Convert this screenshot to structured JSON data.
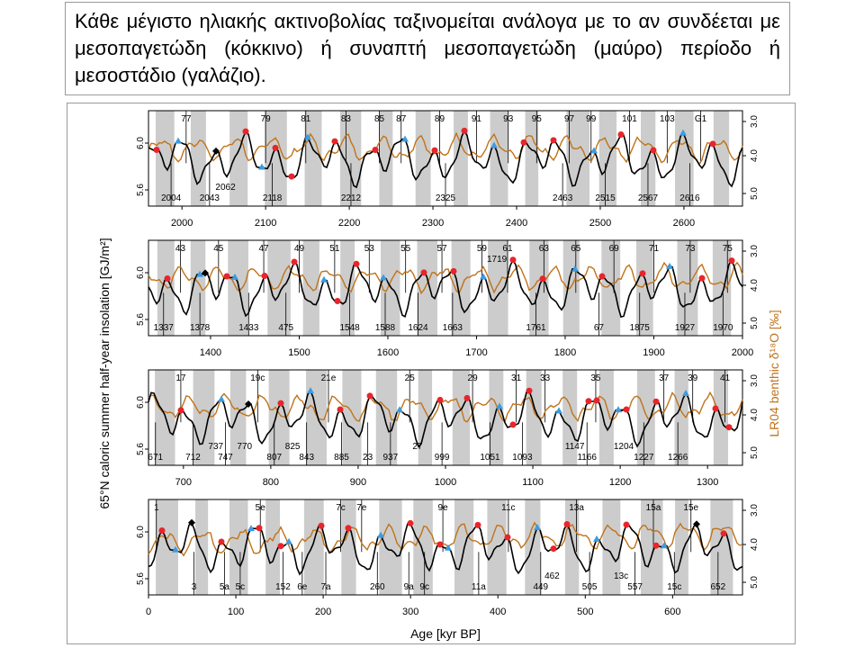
{
  "caption": "Κάθε μέγιστο ηλιακής ακτινοβολίας ταξινομείται ανάλογα με το αν συνδέεται με μεσοπαγετώδη (κόκκινο) ή συναπτή μεσοπαγετώδη (μαύρο) περίοδο ή μεσοστάδιο (γαλάζιο).",
  "colors": {
    "insolation": "#000000",
    "benthic": "#c0731a",
    "interglacial": "#e8252b",
    "interstadial": "#3d9be0",
    "glacial_band": "#cccccc"
  },
  "chart_data": {
    "type": "line",
    "xlabel": "Age [kyr BP]",
    "ylabel_left": "65°N caloric summer half-year insolation [GJ/m²]",
    "ylabel_right": "LR04 benthic δ¹⁸O  [‰]",
    "left_ticks": [
      "5.6",
      "6.0"
    ],
    "right_ticks": [
      "3.0",
      "4.0",
      "5.0"
    ],
    "panels": [
      {
        "xlim": [
          1960,
          2670
        ],
        "xticks": [
          "2000",
          "2100",
          "2200",
          "2300",
          "2400",
          "2500",
          "2600"
        ],
        "xtick_values": [
          2000,
          2100,
          2200,
          2300,
          2400,
          2500,
          2600
        ],
        "top_labels": [
          {
            "text": "77",
            "x": 2005
          },
          {
            "text": "79",
            "x": 2100
          },
          {
            "text": "81",
            "x": 2148
          },
          {
            "text": "83",
            "x": 2196
          },
          {
            "text": "85",
            "x": 2236
          },
          {
            "text": "87",
            "x": 2262
          },
          {
            "text": "89",
            "x": 2308
          },
          {
            "text": "91",
            "x": 2352
          },
          {
            "text": "93",
            "x": 2390
          },
          {
            "text": "95",
            "x": 2424
          },
          {
            "text": "97",
            "x": 2463
          },
          {
            "text": "99",
            "x": 2489
          },
          {
            "text": "101",
            "x": 2535
          },
          {
            "text": "103",
            "x": 2580
          },
          {
            "text": "G1",
            "x": 2620
          }
        ],
        "bottom_labels": [
          {
            "text": "2004",
            "x": 1987,
            "row": 0
          },
          {
            "text": "2043",
            "x": 2033,
            "row": 0
          },
          {
            "text": "2062",
            "x": 2052,
            "row": 1
          },
          {
            "text": "2118",
            "x": 2108,
            "row": 0
          },
          {
            "text": "2212",
            "x": 2202,
            "row": 0
          },
          {
            "text": "2325",
            "x": 2315,
            "row": 0
          },
          {
            "text": "2463",
            "x": 2455,
            "row": 0
          },
          {
            "text": "2515",
            "x": 2506,
            "row": 0
          },
          {
            "text": "2567",
            "x": 2557,
            "row": 0
          },
          {
            "text": "2616",
            "x": 2607,
            "row": 0
          }
        ]
      },
      {
        "xlim": [
          1330,
          2000
        ],
        "xticks": [
          "1400",
          "1500",
          "1600",
          "1700",
          "1800",
          "1900",
          "2000"
        ],
        "xtick_values": [
          1400,
          1500,
          1600,
          1700,
          1800,
          1900,
          2000
        ],
        "top_labels": [
          {
            "text": "43",
            "x": 1366
          },
          {
            "text": "45",
            "x": 1409
          },
          {
            "text": "47",
            "x": 1460
          },
          {
            "text": "49",
            "x": 1500
          },
          {
            "text": "51",
            "x": 1540
          },
          {
            "text": "53",
            "x": 1579
          },
          {
            "text": "55",
            "x": 1620
          },
          {
            "text": "57",
            "x": 1661
          },
          {
            "text": "59",
            "x": 1706
          },
          {
            "text": "61",
            "x": 1735
          },
          {
            "text": "1719",
            "x": 1723,
            "row": 1
          },
          {
            "text": "63",
            "x": 1776
          },
          {
            "text": "65",
            "x": 1812
          },
          {
            "text": "69",
            "x": 1855
          },
          {
            "text": "71",
            "x": 1900
          },
          {
            "text": "73",
            "x": 1941
          },
          {
            "text": "75",
            "x": 1983
          }
        ],
        "bottom_labels": [
          {
            "text": "1337",
            "x": 1347,
            "row": 0
          },
          {
            "text": "1378",
            "x": 1388,
            "row": 0
          },
          {
            "text": "1433",
            "x": 1443,
            "row": 0
          },
          {
            "text": "475",
            "x": 1485,
            "row": 0
          },
          {
            "text": "1548",
            "x": 1557,
            "row": 0
          },
          {
            "text": "1588",
            "x": 1597,
            "row": 0
          },
          {
            "text": "1624",
            "x": 1634,
            "row": 0
          },
          {
            "text": "1663",
            "x": 1673,
            "row": 0
          },
          {
            "text": "1761",
            "x": 1767,
            "row": 0
          },
          {
            "text": "67",
            "x": 1838,
            "row": 0
          },
          {
            "text": "1875",
            "x": 1884,
            "row": 0
          },
          {
            "text": "1927",
            "x": 1935,
            "row": 0
          },
          {
            "text": "1970",
            "x": 1978,
            "row": 0
          }
        ]
      },
      {
        "xlim": [
          660,
          1340
        ],
        "xticks": [
          "700",
          "800",
          "900",
          "1000",
          "1100",
          "1200",
          "1300"
        ],
        "xtick_values": [
          700,
          800,
          900,
          1000,
          1100,
          1200,
          1300
        ],
        "top_labels": [
          {
            "text": "17",
            "x": 697
          },
          {
            "text": "19c",
            "x": 785
          },
          {
            "text": "21e",
            "x": 866
          },
          {
            "text": "25",
            "x": 959
          },
          {
            "text": "29",
            "x": 1031
          },
          {
            "text": "31",
            "x": 1081
          },
          {
            "text": "33",
            "x": 1114
          },
          {
            "text": "35",
            "x": 1172
          },
          {
            "text": "37",
            "x": 1250
          },
          {
            "text": "39",
            "x": 1283
          },
          {
            "text": "41",
            "x": 1320
          }
        ],
        "bottom_labels": [
          {
            "text": "671",
            "x": 668,
            "row": 0
          },
          {
            "text": "712",
            "x": 711,
            "row": 0
          },
          {
            "text": "747",
            "x": 748,
            "row": 0
          },
          {
            "text": "737",
            "x": 737,
            "row": 1
          },
          {
            "text": "770",
            "x": 770,
            "row": 1
          },
          {
            "text": "807",
            "x": 804,
            "row": 0
          },
          {
            "text": "843",
            "x": 841,
            "row": 0
          },
          {
            "text": "825",
            "x": 825,
            "row": 1
          },
          {
            "text": "885",
            "x": 881,
            "row": 0
          },
          {
            "text": "23",
            "x": 911,
            "row": 0
          },
          {
            "text": "937",
            "x": 937,
            "row": 0
          },
          {
            "text": "27",
            "x": 968,
            "row": 1
          },
          {
            "text": "999",
            "x": 996,
            "row": 0
          },
          {
            "text": "1051",
            "x": 1051,
            "row": 0
          },
          {
            "text": "1093",
            "x": 1088,
            "row": 0
          },
          {
            "text": "1147",
            "x": 1148,
            "row": 1
          },
          {
            "text": "1166",
            "x": 1162,
            "row": 0
          },
          {
            "text": "1204",
            "x": 1204,
            "row": 1
          },
          {
            "text": "1227",
            "x": 1227,
            "row": 0
          },
          {
            "text": "1266",
            "x": 1266,
            "row": 0
          }
        ]
      },
      {
        "xlim": [
          0,
          680
        ],
        "xticks": [
          "0",
          "100",
          "200",
          "300",
          "400",
          "500",
          "600"
        ],
        "xtick_values": [
          0,
          100,
          200,
          300,
          400,
          500,
          600
        ],
        "top_labels": [
          {
            "text": "1",
            "x": 9
          },
          {
            "text": "5e",
            "x": 128
          },
          {
            "text": "7c",
            "x": 220
          },
          {
            "text": "7e",
            "x": 244
          },
          {
            "text": "9e",
            "x": 337
          },
          {
            "text": "11c",
            "x": 412
          },
          {
            "text": "13a",
            "x": 490
          },
          {
            "text": "15a",
            "x": 578
          },
          {
            "text": "15e",
            "x": 621
          }
        ],
        "bottom_labels": [
          {
            "text": "3",
            "x": 52,
            "row": 0
          },
          {
            "text": "5a",
            "x": 87,
            "row": 0
          },
          {
            "text": "5c",
            "x": 105,
            "row": 0
          },
          {
            "text": "152",
            "x": 154,
            "row": 0
          },
          {
            "text": "6e",
            "x": 176,
            "row": 0
          },
          {
            "text": "7a",
            "x": 203,
            "row": 0
          },
          {
            "text": "260",
            "x": 262,
            "row": 0
          },
          {
            "text": "9a",
            "x": 298,
            "row": 0
          },
          {
            "text": "9c",
            "x": 316,
            "row": 0
          },
          {
            "text": "11a",
            "x": 378,
            "row": 0
          },
          {
            "text": "462",
            "x": 462,
            "row": 1
          },
          {
            "text": "449",
            "x": 449,
            "row": 0
          },
          {
            "text": "505",
            "x": 505,
            "row": 0
          },
          {
            "text": "13c",
            "x": 541,
            "row": 1
          },
          {
            "text": "557",
            "x": 557,
            "row": 0
          },
          {
            "text": "15c",
            "x": 602,
            "row": 0
          },
          {
            "text": "652",
            "x": 652,
            "row": 0
          }
        ]
      }
    ]
  }
}
